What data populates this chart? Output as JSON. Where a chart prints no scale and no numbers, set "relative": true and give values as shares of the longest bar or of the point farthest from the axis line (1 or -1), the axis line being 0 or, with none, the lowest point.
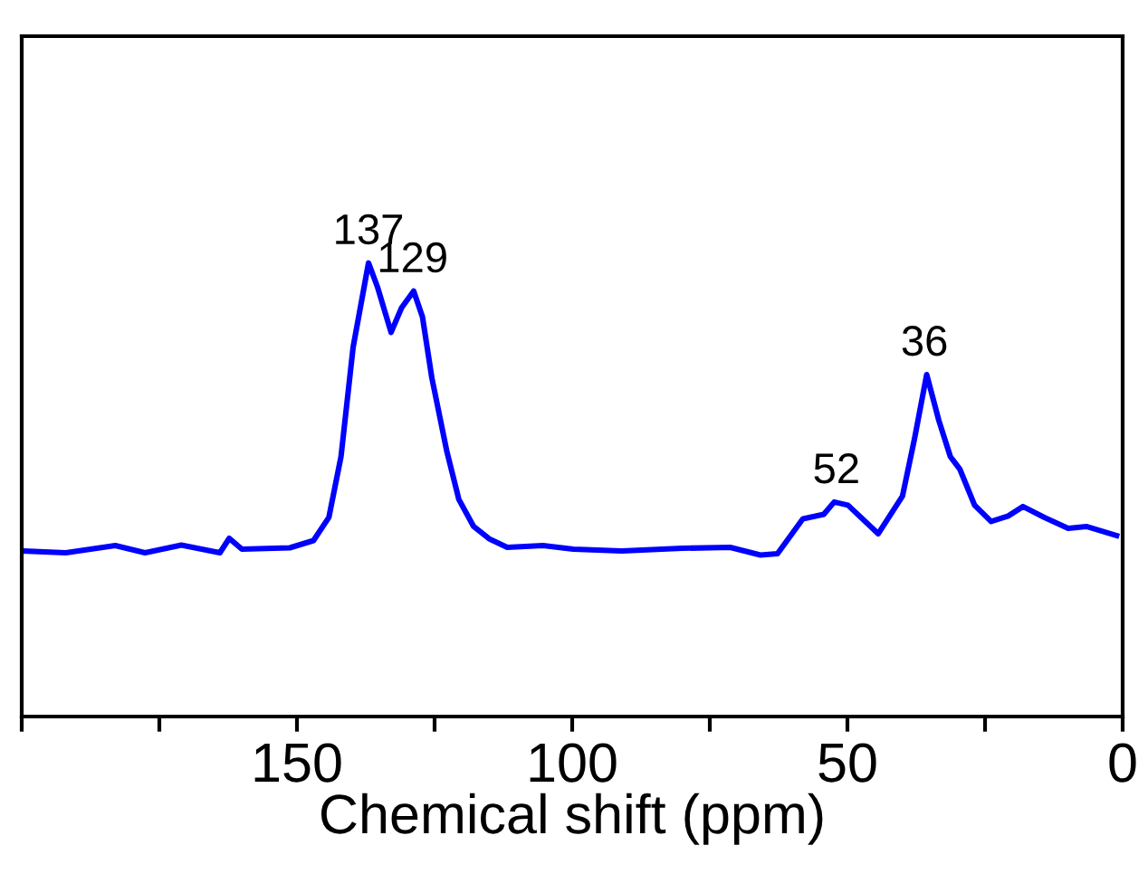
{
  "chart_data": {
    "type": "line",
    "relative": true,
    "xlabel": "Chemical shift (ppm)",
    "xlim": [
      200,
      0
    ],
    "xticks": [
      {
        "value": 200,
        "label": null
      },
      {
        "value": 175,
        "label": null
      },
      150,
      {
        "value": 125,
        "label": null
      },
      100,
      {
        "value": 75,
        "label": null
      },
      50,
      {
        "value": 25,
        "label": null
      },
      0
    ],
    "tick_labels": "x",
    "grid": false,
    "legend": false,
    "marker": "none",
    "line_style": "solid",
    "series": [
      {
        "color": "#0000ff",
        "x": [
          199.6,
          192,
          183,
          177.6,
          171,
          164,
          162.3,
          160,
          151.3,
          147,
          144.2,
          142,
          139.8,
          137,
          135.4,
          132.9,
          131,
          128.8,
          127.2,
          125.5,
          122.8,
          120.6,
          117.9,
          115.1,
          111.8,
          105.3,
          99.8,
          91,
          80,
          71.3,
          65.8,
          62.7,
          58.1,
          54.3,
          52.4,
          49.9,
          44.4,
          40.0,
          37.8,
          35.6,
          33.4,
          31.3,
          29.6,
          26.9,
          23.9,
          20.8,
          18.1,
          14.2,
          9.9,
          6.6,
          1.1
        ],
        "values": [
          0.365,
          0.361,
          0.377,
          0.361,
          0.378,
          0.361,
          0.393,
          0.369,
          0.372,
          0.388,
          0.439,
          0.573,
          0.814,
          1.0,
          0.948,
          0.847,
          0.901,
          0.938,
          0.881,
          0.747,
          0.586,
          0.479,
          0.419,
          0.392,
          0.373,
          0.377,
          0.369,
          0.365,
          0.371,
          0.373,
          0.356,
          0.359,
          0.436,
          0.446,
          0.473,
          0.466,
          0.403,
          0.486,
          0.613,
          0.754,
          0.653,
          0.573,
          0.546,
          0.466,
          0.43,
          0.442,
          0.463,
          0.439,
          0.415,
          0.419,
          0.399
        ]
      }
    ],
    "annotations": [
      {
        "text": "137",
        "x": 137,
        "y": 1.0
      },
      {
        "text": "129",
        "x": 129,
        "y": 0.938
      },
      {
        "text": "52",
        "x": 52,
        "y": 0.473
      },
      {
        "text": "36",
        "x": 36,
        "y": 0.754
      }
    ]
  }
}
